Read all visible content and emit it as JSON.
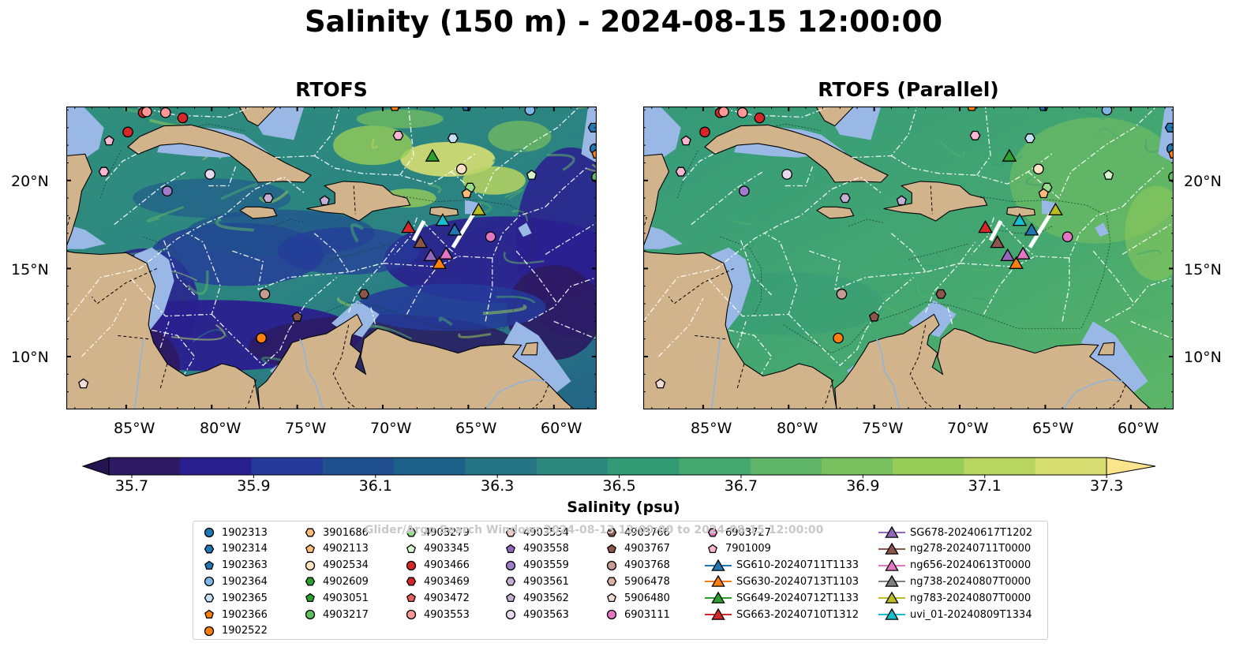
{
  "figure": {
    "title": "Salinity (150 m) - 2024-08-15 12:00:00",
    "watermark": "Glider/Argo Search Window: 2024-08-13 12:00:00 to 2024-08-15 12:00:00"
  },
  "panels": [
    {
      "title": "RTOFS",
      "variant": "original"
    },
    {
      "title": "RTOFS (Parallel)",
      "variant": "parallel"
    }
  ],
  "map": {
    "lon_range": [
      -88.5,
      -57.5
    ],
    "lat_range": [
      7,
      24.2
    ],
    "lon_ticks": [
      "85°W",
      "80°W",
      "75°W",
      "70°W",
      "65°W",
      "60°W"
    ],
    "lat_ticks": [
      "20°N",
      "15°N",
      "10°N"
    ],
    "colors": {
      "land": "#d2b48c",
      "shelf": "#9ab8e6",
      "eez_lines": "#ffffff",
      "borders": "#000000"
    }
  },
  "colorbar": {
    "label": "Salinity (psu)",
    "min": 35.7,
    "max": 37.3,
    "tick_labels": [
      "35.7",
      "35.9",
      "36.1",
      "36.3",
      "36.5",
      "36.7",
      "36.9",
      "37.1",
      "37.3"
    ],
    "colors": [
      "#2c1a62",
      "#2a1f8f",
      "#253a9a",
      "#1f4f8f",
      "#1d6189",
      "#257584",
      "#2d887d",
      "#339a76",
      "#45a870",
      "#5eb567",
      "#79c15e",
      "#96cc58",
      "#b7d560",
      "#d6de72"
    ],
    "extend": "both"
  },
  "legend": {
    "columns": [
      [
        "1902313",
        "1902314",
        "1902363",
        "1902364",
        "1902365",
        "1902366",
        "1902522"
      ],
      [
        "3901686",
        "4902113",
        "4902534",
        "4902609",
        "4903051",
        "4903217"
      ],
      [
        "4903279",
        "4903345",
        "4903466",
        "4903469",
        "4903472",
        "4903553"
      ],
      [
        "4903554",
        "4903558",
        "4903559",
        "4903561",
        "4903562",
        "4903563"
      ],
      [
        "4903766",
        "4903767",
        "4903768",
        "5906478",
        "5906480",
        "6903111"
      ],
      [
        "6903727",
        "7901009",
        "SG610-20240711T1133",
        "SG630-20240713T1103",
        "SG649-20240712T1133",
        "SG663-20240710T1312"
      ],
      [
        "SG678-20240617T1202",
        "ng278-20240711T0000",
        "ng656-20240613T0000",
        "ng738-20240807T0000",
        "ng783-20240807T0000",
        "uvi_01-20240809T1334"
      ]
    ],
    "markers": [
      [
        [
          "circle",
          "#1f77b4"
        ],
        [
          "hexagon",
          "#1f77b4"
        ],
        [
          "pentagon",
          "#1f77b4"
        ],
        [
          "circle",
          "#7fb8e8"
        ],
        [
          "hexagon",
          "#c6e0f5"
        ],
        [
          "pentagon",
          "#ff7f0e"
        ],
        [
          "circle",
          "#ff7f0e"
        ]
      ],
      [
        [
          "hexagon",
          "#ffbb78"
        ],
        [
          "pentagon",
          "#ffbb78"
        ],
        [
          "circle",
          "#ffe3c2"
        ],
        [
          "hexagon",
          "#2ca02c"
        ],
        [
          "pentagon",
          "#2ca02c"
        ],
        [
          "circle",
          "#5cc05c"
        ]
      ],
      [
        [
          "hexagon",
          "#98df8a"
        ],
        [
          "pentagon",
          "#d8f5cf"
        ],
        [
          "circle",
          "#d62728"
        ],
        [
          "hexagon",
          "#d62728"
        ],
        [
          "pentagon",
          "#e8615f"
        ],
        [
          "circle",
          "#ff9896"
        ]
      ],
      [
        [
          "hexagon",
          "#ffc9c7"
        ],
        [
          "pentagon",
          "#9467bd"
        ],
        [
          "circle",
          "#a07ccd"
        ],
        [
          "hexagon",
          "#c5b0d5"
        ],
        [
          "pentagon",
          "#c5b0d5"
        ],
        [
          "circle",
          "#e6d9f0"
        ]
      ],
      [
        [
          "hexagon",
          "#8c564b"
        ],
        [
          "pentagon",
          "#8c564b"
        ],
        [
          "circle",
          "#c49c94"
        ],
        [
          "hexagon",
          "#d9b3a8"
        ],
        [
          "pentagon",
          "#f2ddd6"
        ],
        [
          "circle",
          "#e377c2"
        ]
      ],
      [
        [
          "hexagon",
          "#e377c2"
        ],
        [
          "pentagon",
          "#f7b6d2"
        ],
        [
          "tri",
          "#1f77b4"
        ],
        [
          "tri",
          "#ff7f0e"
        ],
        [
          "tri",
          "#2ca02c"
        ],
        [
          "tri",
          "#d62728"
        ]
      ],
      [
        [
          "tri",
          "#9467bd"
        ],
        [
          "tri",
          "#8c564b"
        ],
        [
          "tri",
          "#e377c2"
        ],
        [
          "tri",
          "#7f7f7f"
        ],
        [
          "tri",
          "#bcbd22"
        ],
        [
          "tri",
          "#17becf"
        ]
      ]
    ]
  }
}
